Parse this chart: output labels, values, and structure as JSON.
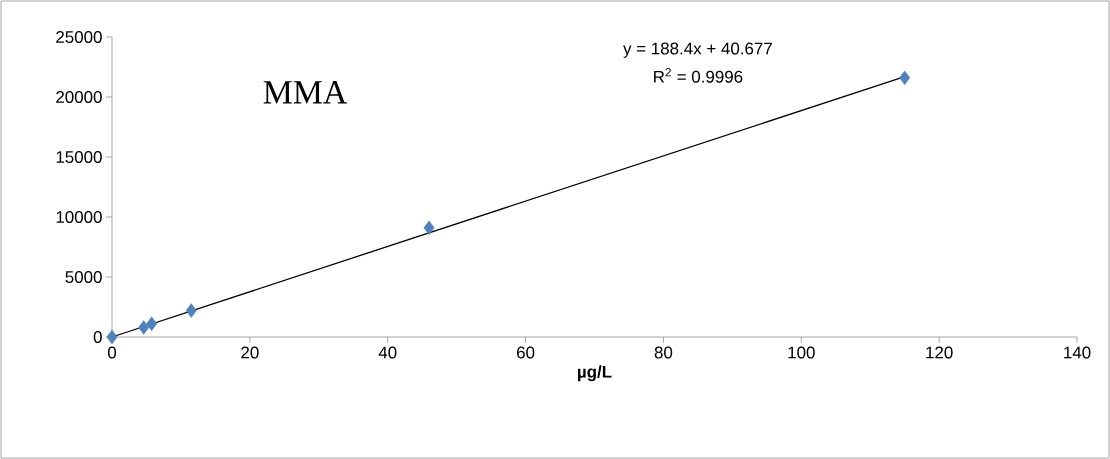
{
  "chart_data": {
    "type": "scatter",
    "title": "MMA",
    "xlabel": "µg/L",
    "annotations": [
      "y = 188.4x + 40.677",
      "R$^{2}$ = 0.9996"
    ],
    "series": [
      {
        "color": "#4f81bd",
        "marker": "diamond",
        "x": [
          0,
          4.6,
          5.75,
          11.5,
          46,
          115
        ],
        "values": [
          0,
          800,
          1100,
          2200,
          9100,
          21600
        ]
      },
      {
        "type": "line",
        "color": "#000000",
        "marker": "none",
        "line_style": "solid",
        "x": [
          0,
          115
        ],
        "values": [
          0,
          21700
        ]
      }
    ],
    "xlim": [
      0,
      140
    ],
    "ylim": [
      0,
      25000
    ],
    "xticks": [
      0,
      20,
      40,
      60,
      80,
      100,
      120,
      140
    ],
    "yticks": [
      0,
      5000,
      10000,
      15000,
      20000,
      25000
    ]
  }
}
